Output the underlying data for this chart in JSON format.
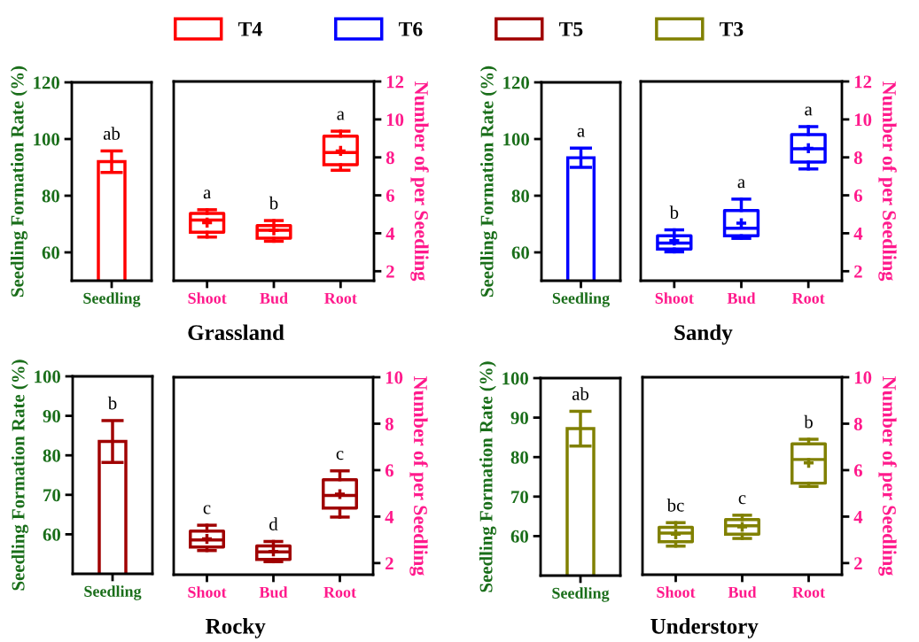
{
  "chart_data": [
    {
      "type": "bar",
      "categories": [
        "Seedling"
      ],
      "series": [
        {
          "color": "#ff0000",
          "values": [
            92
          ],
          "errors": [
            3.8
          ]
        }
      ],
      "ylabel": "Seedling Formation Rate (%)",
      "ylim": [
        50,
        120
      ],
      "yticks": [
        60,
        80,
        100,
        120
      ],
      "annotations": [
        {
          "text": "ab",
          "x": "Seedling",
          "y": 92
        }
      ]
    },
    {
      "type": "box",
      "categories": [
        "Shoot",
        "Bud",
        "Root"
      ],
      "series": [
        {
          "name": "T4",
          "color": "#ff0000",
          "boxes": [
            {
              "low": 3.8,
              "q1": 4.05,
              "median": 4.7,
              "q3": 5.05,
              "high": 5.24,
              "mean": 4.56
            },
            {
              "low": 3.58,
              "q1": 3.74,
              "median": 4.16,
              "q3": 4.4,
              "high": 4.67,
              "mean": 4.15
            },
            {
              "low": 7.32,
              "q1": 7.61,
              "median": 8.26,
              "q3": 9.12,
              "high": 9.38,
              "mean": 8.34
            }
          ]
        }
      ],
      "xlabel": "Grassland",
      "ylabel": "Number of per Seedling",
      "ylim": [
        1.5,
        12
      ],
      "yticks": [
        2,
        4,
        6,
        8,
        10,
        12
      ],
      "legend": "top",
      "annotations": [
        {
          "text": "a",
          "x": "Shoot",
          "y": 5.24
        },
        {
          "text": "b",
          "x": "Bud",
          "y": 4.67
        },
        {
          "text": "a",
          "x": "Root",
          "y": 9.38
        }
      ]
    },
    {
      "type": "bar",
      "categories": [
        "Seedling"
      ],
      "series": [
        {
          "color": "#0000ff",
          "values": [
            93.4
          ],
          "errors": [
            3.4
          ]
        }
      ],
      "ylabel": "Seedling Formation Rate (%)",
      "ylim": [
        50,
        120
      ],
      "yticks": [
        60,
        80,
        100,
        120
      ],
      "annotations": [
        {
          "text": "a",
          "x": "Seedling",
          "y": 93.4
        }
      ]
    },
    {
      "type": "box",
      "categories": [
        "Shoot",
        "Bud",
        "Root"
      ],
      "series": [
        {
          "name": "T6",
          "color": "#0000ff",
          "boxes": [
            {
              "low": 3.02,
              "q1": 3.17,
              "median": 3.48,
              "q3": 3.87,
              "high": 4.18,
              "mean": 3.61
            },
            {
              "low": 3.73,
              "q1": 3.87,
              "median": 4.26,
              "q3": 5.2,
              "high": 5.8,
              "mean": 4.53
            },
            {
              "low": 7.39,
              "q1": 7.75,
              "median": 8.45,
              "q3": 9.2,
              "high": 9.62,
              "mean": 8.48
            }
          ]
        }
      ],
      "xlabel": "Sandy",
      "ylabel": "Number of per Seedling",
      "ylim": [
        1.5,
        12
      ],
      "yticks": [
        2,
        4,
        6,
        8,
        10,
        12
      ],
      "legend": "top",
      "annotations": [
        {
          "text": "b",
          "x": "Shoot",
          "y": 4.18
        },
        {
          "text": "a",
          "x": "Bud",
          "y": 5.8
        },
        {
          "text": "a",
          "x": "Root",
          "y": 9.62
        }
      ]
    },
    {
      "type": "bar",
      "categories": [
        "Seedling"
      ],
      "series": [
        {
          "color": "#a00000",
          "values": [
            83.5
          ],
          "errors": [
            5.3
          ]
        }
      ],
      "ylabel": "Seedling Formation Rate (%)",
      "ylim": [
        50,
        100
      ],
      "yticks": [
        60,
        70,
        80,
        90,
        100
      ],
      "annotations": [
        {
          "text": "b",
          "x": "Seedling",
          "y": 83.5
        }
      ]
    },
    {
      "type": "box",
      "categories": [
        "Shoot",
        "Bud",
        "Root"
      ],
      "series": [
        {
          "name": "T5",
          "color": "#a00000",
          "boxes": [
            {
              "low": 2.54,
              "q1": 2.69,
              "median": 3.0,
              "q3": 3.38,
              "high": 3.63,
              "mean": 3.04
            },
            {
              "low": 2.06,
              "q1": 2.16,
              "median": 2.48,
              "q3": 2.74,
              "high": 2.93,
              "mean": 2.5
            },
            {
              "low": 3.98,
              "q1": 4.37,
              "median": 4.91,
              "q3": 5.59,
              "high": 5.97,
              "mean": 4.97
            }
          ]
        }
      ],
      "xlabel": "Rocky",
      "ylabel": "Number of per Seedling",
      "ylim": [
        1.5,
        10
      ],
      "yticks": [
        2,
        4,
        6,
        8,
        10
      ],
      "legend": "top",
      "annotations": [
        {
          "text": "c",
          "x": "Shoot",
          "y": 3.63
        },
        {
          "text": "d",
          "x": "Bud",
          "y": 2.93
        },
        {
          "text": "c",
          "x": "Root",
          "y": 5.97
        }
      ]
    },
    {
      "type": "bar",
      "categories": [
        "Seedling"
      ],
      "series": [
        {
          "color": "#808000",
          "values": [
            87.2
          ],
          "errors": [
            4.4
          ]
        }
      ],
      "ylabel": "Seedling Formation Rate (%)",
      "ylim": [
        50,
        100
      ],
      "yticks": [
        60,
        70,
        80,
        90,
        100
      ],
      "annotations": [
        {
          "text": "ab",
          "x": "Seedling",
          "y": 87.2
        }
      ]
    },
    {
      "type": "box",
      "categories": [
        "Shoot",
        "Bud",
        "Root"
      ],
      "series": [
        {
          "name": "T3",
          "color": "#808000",
          "boxes": [
            {
              "low": 2.73,
              "q1": 2.92,
              "median": 3.29,
              "q3": 3.54,
              "high": 3.74,
              "mean": 3.24
            },
            {
              "low": 3.06,
              "q1": 3.24,
              "median": 3.61,
              "q3": 3.87,
              "high": 4.06,
              "mean": 3.56
            },
            {
              "low": 5.3,
              "q1": 5.44,
              "median": 6.46,
              "q3": 7.13,
              "high": 7.33,
              "mean": 6.31
            }
          ]
        }
      ],
      "xlabel": "Understory",
      "ylabel": "Number of per Seedling",
      "ylim": [
        1.5,
        10
      ],
      "yticks": [
        2,
        4,
        6,
        8,
        10
      ],
      "legend": "top",
      "annotations": [
        {
          "text": "bc",
          "x": "Shoot",
          "y": 3.74
        },
        {
          "text": "c",
          "x": "Bud",
          "y": 4.06
        },
        {
          "text": "b",
          "x": "Root",
          "y": 7.33
        }
      ]
    }
  ]
}
